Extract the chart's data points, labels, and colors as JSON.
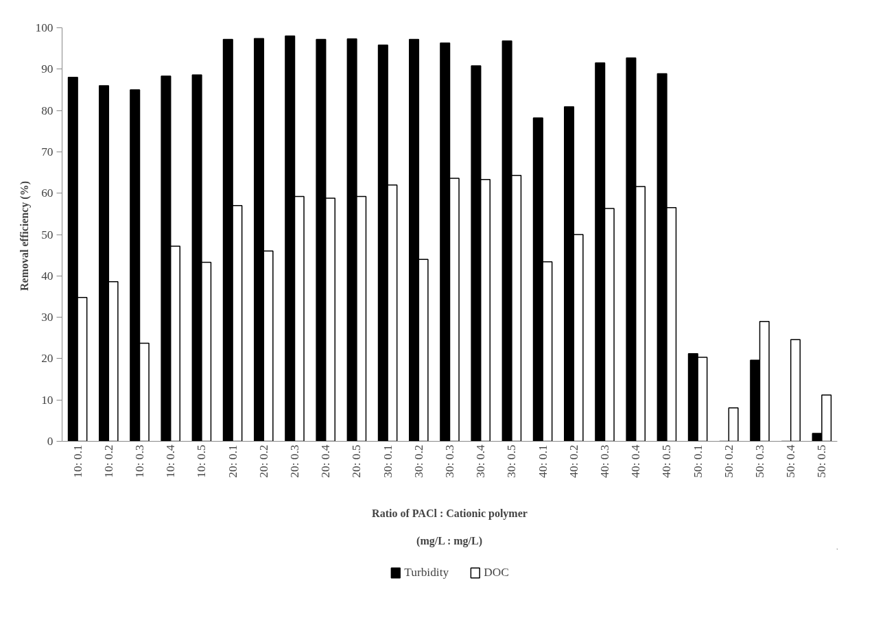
{
  "chart_data": {
    "type": "bar",
    "xlabel": "Ratio of PACl : Cationic polymer\n\n(mg/L : mg/L)",
    "ylabel": "Removal efficiency  (%)",
    "categories": [
      "10: 0.1",
      "10: 0.2",
      "10: 0.3",
      "10: 0.4",
      "10: 0.5",
      "20: 0.1",
      "20: 0.2",
      "20: 0.3",
      "20: 0.4",
      "20: 0.5",
      "30: 0.1",
      "30: 0.2",
      "30: 0.3",
      "30: 0.4",
      "30: 0.5",
      "40: 0.1",
      "40: 0.2",
      "40: 0.3",
      "40: 0.4",
      "40: 0.5",
      "50: 0.1",
      "50: 0.2",
      "50: 0.3",
      "50: 0.4",
      "50: 0.5"
    ],
    "series": [
      {
        "name": "Turbidity",
        "color": "#000000",
        "values": [
          88,
          86,
          85,
          88.3,
          88.6,
          97.2,
          97.4,
          98,
          97.2,
          97.3,
          95.8,
          97.2,
          96.3,
          90.8,
          96.8,
          78.2,
          80.9,
          91.5,
          92.7,
          88.9,
          21.2,
          0,
          19.6,
          0,
          1.9
        ]
      },
      {
        "name": "DOC",
        "color": "#ffffff",
        "values": [
          34.8,
          38.6,
          23.7,
          47.2,
          43.3,
          57,
          46,
          59.2,
          58.8,
          59.2,
          62,
          44,
          63.6,
          63.3,
          64.3,
          43.4,
          50,
          56.3,
          61.6,
          56.5,
          20.3,
          8.1,
          29,
          24.6,
          11.2
        ]
      }
    ],
    "ylim": [
      0,
      100
    ],
    "yticks": [
      0,
      10,
      20,
      30,
      40,
      50,
      60,
      70,
      80,
      90,
      100
    ],
    "grid": false,
    "legend": "bottom"
  }
}
